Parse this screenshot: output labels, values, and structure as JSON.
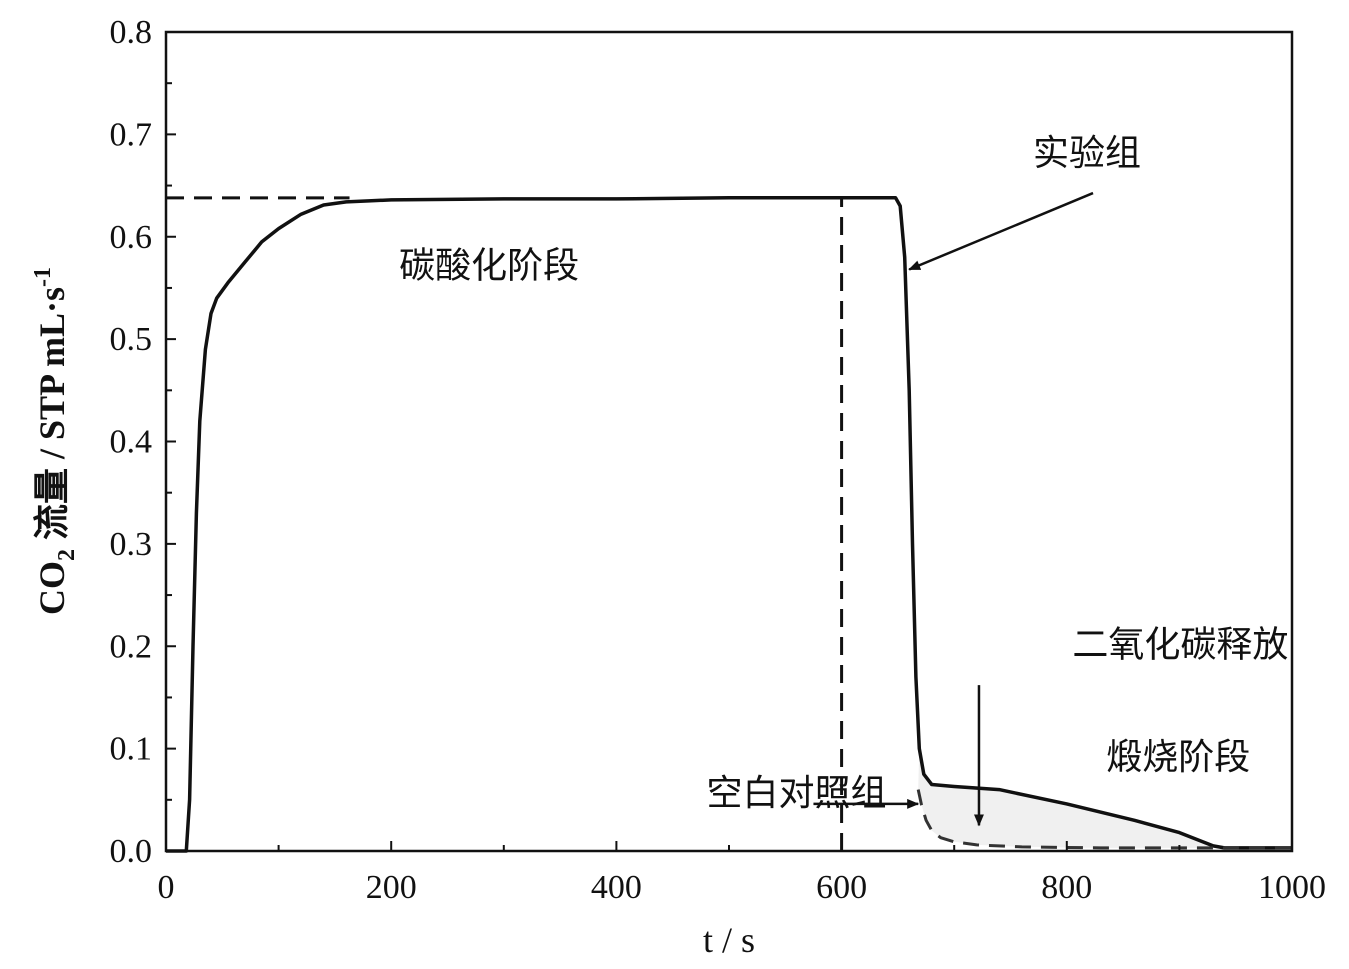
{
  "chart_data": {
    "type": "line",
    "xlabel": "t / s",
    "ylabel": {
      "main": "CO",
      "sub": "2",
      "rest": " 流量 / STP mL·s",
      "sup": "-1"
    },
    "xlim": [
      0,
      1000
    ],
    "ylim": [
      0,
      0.8
    ],
    "xticks": [
      0,
      200,
      400,
      600,
      800,
      1000
    ],
    "yticks": [
      "0.0",
      "0.1",
      "0.2",
      "0.3",
      "0.4",
      "0.5",
      "0.6",
      "0.7",
      "0.8"
    ],
    "grid": false,
    "colors": {
      "experiment": "#111111",
      "blank": "#333333",
      "fill": "#f0f0f0",
      "reference": "#111111"
    },
    "series": [
      {
        "name": "实验组",
        "style": "solid",
        "x": [
          0,
          18,
          21,
          24,
          27,
          30,
          35,
          40,
          45,
          55,
          70,
          85,
          100,
          120,
          140,
          160,
          180,
          200,
          300,
          400,
          500,
          600,
          648,
          652,
          656,
          660,
          663,
          666,
          669,
          673,
          680,
          700,
          740,
          800,
          860,
          900,
          930,
          940,
          1000
        ],
        "y": [
          0,
          0,
          0.05,
          0.2,
          0.33,
          0.42,
          0.49,
          0.525,
          0.54,
          0.555,
          0.575,
          0.595,
          0.608,
          0.622,
          0.631,
          0.634,
          0.635,
          0.636,
          0.637,
          0.637,
          0.638,
          0.638,
          0.638,
          0.63,
          0.58,
          0.45,
          0.3,
          0.17,
          0.1,
          0.075,
          0.065,
          0.063,
          0.06,
          0.046,
          0.03,
          0.018,
          0.005,
          0.003,
          0.003
        ]
      },
      {
        "name": "空白对照组",
        "style": "dashed",
        "x": [
          668,
          671,
          675,
          680,
          688,
          700,
          720,
          760,
          830,
          900,
          940,
          1000
        ],
        "y": [
          0.06,
          0.045,
          0.03,
          0.02,
          0.013,
          0.009,
          0.006,
          0.004,
          0.003,
          0.003,
          0.003,
          0.003
        ]
      }
    ],
    "reference_lines": [
      {
        "orientation": "horizontal",
        "y": 0.638,
        "x_range": [
          0,
          163
        ]
      },
      {
        "orientation": "vertical",
        "x": 600,
        "y_range": [
          0,
          0.638
        ]
      }
    ],
    "annotations": [
      {
        "id": "carbonation",
        "text": "碳酸化阶段",
        "x": 207,
        "y": 0.56
      },
      {
        "id": "experiment",
        "text": "实验组",
        "x": 770,
        "y": 0.67,
        "arrow_to": [
          660,
          0.568
        ]
      },
      {
        "id": "release",
        "text": "二氧化碳释放",
        "x": 805,
        "y": 0.19,
        "arrow_from": [
          722,
          0.162
        ],
        "arrow_to": [
          722,
          0.025
        ]
      },
      {
        "id": "calcination",
        "text": "煅烧阶段",
        "x": 835,
        "y": 0.08
      },
      {
        "id": "blank",
        "text": "空白对照组",
        "x": 480,
        "y": 0.045,
        "arrow_from": [
          575,
          0.046
        ],
        "arrow_to": [
          668,
          0.046
        ]
      }
    ]
  }
}
